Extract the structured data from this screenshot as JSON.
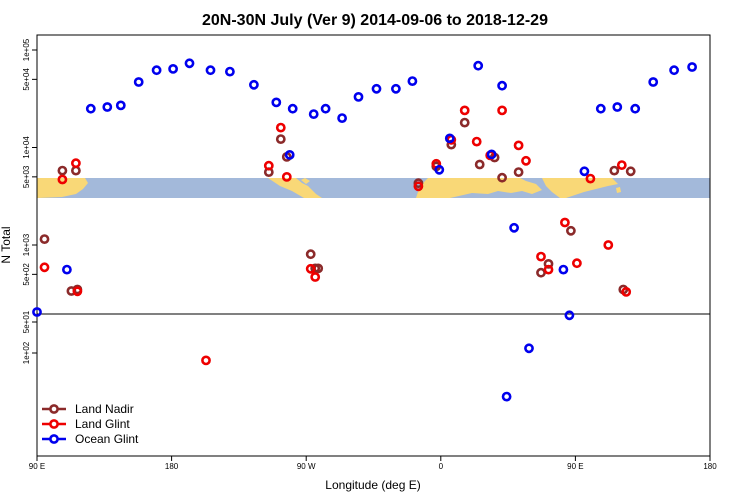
{
  "chart_data": {
    "type": "scatter",
    "title": "20N-30N July (Ver 9)   2014-09-06 to 2018-12-29",
    "xlabel": "Longitude (deg E)",
    "ylabel": "N Total",
    "x_ticks": [
      {
        "v": 90,
        "label": "90 E"
      },
      {
        "v": 180,
        "label": "180"
      },
      {
        "v": 270,
        "label": "90 W"
      },
      {
        "v": 360,
        "label": "0"
      },
      {
        "v": 450,
        "label": "90 E"
      },
      {
        "v": 540,
        "label": "180"
      }
    ],
    "xlim": [
      90,
      540
    ],
    "y_ticks_upper": [
      {
        "v": 1000,
        "label": "1e+03"
      },
      {
        "v": 5000,
        "label": "5e+03"
      },
      {
        "v": 10000,
        "label": "1e+04"
      },
      {
        "v": 50000,
        "label": "5e+04"
      },
      {
        "v": 100000,
        "label": "1e+05"
      }
    ],
    "y_ticks_lower": [
      {
        "v": 50,
        "label": "5e+01"
      },
      {
        "v": 100,
        "label": "1e+02"
      }
    ],
    "y_ticks_middle": [
      {
        "v": 500,
        "label": "5e+02"
      }
    ],
    "legend": {
      "position": "bottom-left",
      "entries": [
        "Land Nadir",
        "Land Glint",
        "Ocean Glint"
      ]
    },
    "colors": {
      "land_nadir": "#8B2A2A",
      "land_glint": "#EE0000",
      "ocean_glint": "#0000EE",
      "map_ocean": "#A3B9DA",
      "map_land": "#F9D877"
    },
    "series": [
      {
        "name": "Land Nadir",
        "points": [
          [
            95,
            1150
          ],
          [
            107,
            5800
          ],
          [
            116,
            5800
          ],
          [
            117,
            350
          ],
          [
            113,
            25
          ],
          [
            245,
            5600
          ],
          [
            253,
            12200
          ],
          [
            257,
            8000
          ],
          [
            273,
            805
          ],
          [
            276,
            575
          ],
          [
            278,
            575
          ],
          [
            345,
            4300
          ],
          [
            357,
            6400
          ],
          [
            367,
            10700
          ],
          [
            376,
            18000
          ],
          [
            386,
            6700
          ],
          [
            396,
            7900
          ],
          [
            401,
            4900
          ],
          [
            412,
            5600
          ],
          [
            427,
            520
          ],
          [
            432,
            640
          ],
          [
            447,
            1400
          ],
          [
            476,
            5800
          ],
          [
            487,
            5700
          ],
          [
            482,
            350
          ]
        ]
      },
      {
        "name": "Land Glint",
        "points": [
          [
            95,
            590
          ],
          [
            107,
            4700
          ],
          [
            116,
            6900
          ],
          [
            117,
            335
          ],
          [
            203,
            118
          ],
          [
            245,
            6500
          ],
          [
            253,
            16000
          ],
          [
            257,
            5000
          ],
          [
            273,
            570
          ],
          [
            276,
            470
          ],
          [
            345,
            4000
          ],
          [
            357,
            6800
          ],
          [
            367,
            12000
          ],
          [
            376,
            24000
          ],
          [
            384,
            11500
          ],
          [
            393,
            8300
          ],
          [
            401,
            24000
          ],
          [
            412,
            10500
          ],
          [
            417,
            7300
          ],
          [
            427,
            760
          ],
          [
            432,
            560
          ],
          [
            443,
            1700
          ],
          [
            451,
            650
          ],
          [
            460,
            4800
          ],
          [
            472,
            1000
          ],
          [
            481,
            6600
          ],
          [
            484,
            330
          ]
        ]
      },
      {
        "name": "Ocean Glint",
        "points": [
          [
            90,
            40
          ],
          [
            110,
            560
          ],
          [
            126,
            25000
          ],
          [
            137,
            26000
          ],
          [
            146,
            27000
          ],
          [
            158,
            47000
          ],
          [
            170,
            62000
          ],
          [
            181,
            64000
          ],
          [
            192,
            73000
          ],
          [
            206,
            62000
          ],
          [
            219,
            60000
          ],
          [
            235,
            44000
          ],
          [
            250,
            29000
          ],
          [
            261,
            25000
          ],
          [
            275,
            22000
          ],
          [
            259,
            8400
          ],
          [
            283,
            25000
          ],
          [
            294,
            20000
          ],
          [
            305,
            33000
          ],
          [
            317,
            40000
          ],
          [
            330,
            40000
          ],
          [
            341,
            48000
          ],
          [
            359,
            5900
          ],
          [
            366,
            12400
          ],
          [
            385,
            69000
          ],
          [
            401,
            43000
          ],
          [
            394,
            8500
          ],
          [
            404,
            265
          ],
          [
            409,
            1500
          ],
          [
            419,
            90
          ],
          [
            446,
            43
          ],
          [
            442,
            560
          ],
          [
            456,
            5700
          ],
          [
            467,
            25000
          ],
          [
            478,
            26000
          ],
          [
            490,
            25000
          ],
          [
            502,
            47000
          ],
          [
            516,
            62000
          ],
          [
            528,
            67000
          ]
        ]
      }
    ]
  }
}
